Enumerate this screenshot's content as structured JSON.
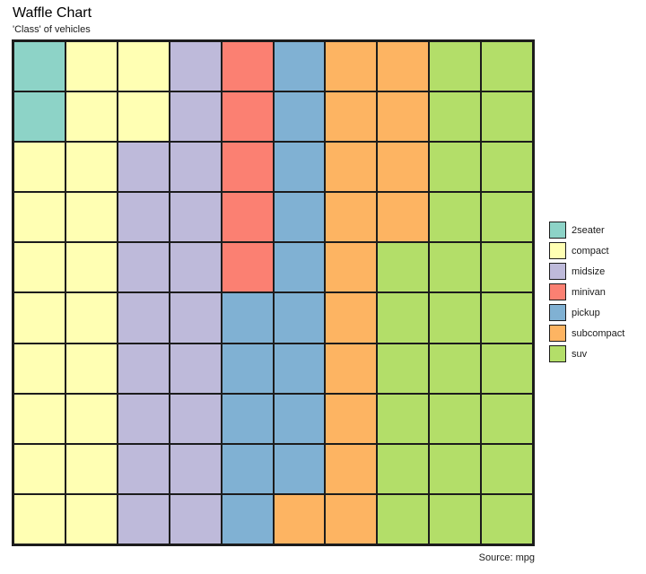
{
  "chart_data": {
    "type": "heatmap",
    "subtype": "waffle",
    "title": "Waffle Chart",
    "subtitle": "'Class' of vehicles",
    "source": "Source: mpg",
    "rows": 10,
    "cols": 10,
    "cell_unit_percent": 1,
    "fill_order": "column-major-from-top-left",
    "legend_position": "right",
    "categories": [
      "2seater",
      "compact",
      "midsize",
      "minivan",
      "pickup",
      "subcompact",
      "suv"
    ],
    "values": [
      2,
      20,
      18,
      5,
      14,
      15,
      26
    ],
    "colors": [
      "#8dd3c7",
      "#ffffb3",
      "#bebada",
      "#fb8072",
      "#80b1d3",
      "#fdb462",
      "#b3de69"
    ],
    "grid_line_color": "#1c1c1c",
    "cells_by_row": [
      [
        0,
        1,
        1,
        2,
        3,
        4,
        5,
        5,
        6,
        6
      ],
      [
        0,
        1,
        1,
        2,
        3,
        4,
        5,
        5,
        6,
        6
      ],
      [
        1,
        1,
        2,
        2,
        3,
        4,
        5,
        5,
        6,
        6
      ],
      [
        1,
        1,
        2,
        2,
        3,
        4,
        5,
        5,
        6,
        6
      ],
      [
        1,
        1,
        2,
        2,
        3,
        4,
        5,
        6,
        6,
        6
      ],
      [
        1,
        1,
        2,
        2,
        4,
        4,
        5,
        6,
        6,
        6
      ],
      [
        1,
        1,
        2,
        2,
        4,
        4,
        5,
        6,
        6,
        6
      ],
      [
        1,
        1,
        2,
        2,
        4,
        4,
        5,
        6,
        6,
        6
      ],
      [
        1,
        1,
        2,
        2,
        4,
        4,
        5,
        6,
        6,
        6
      ],
      [
        1,
        1,
        2,
        2,
        4,
        5,
        5,
        6,
        6,
        6
      ]
    ]
  }
}
